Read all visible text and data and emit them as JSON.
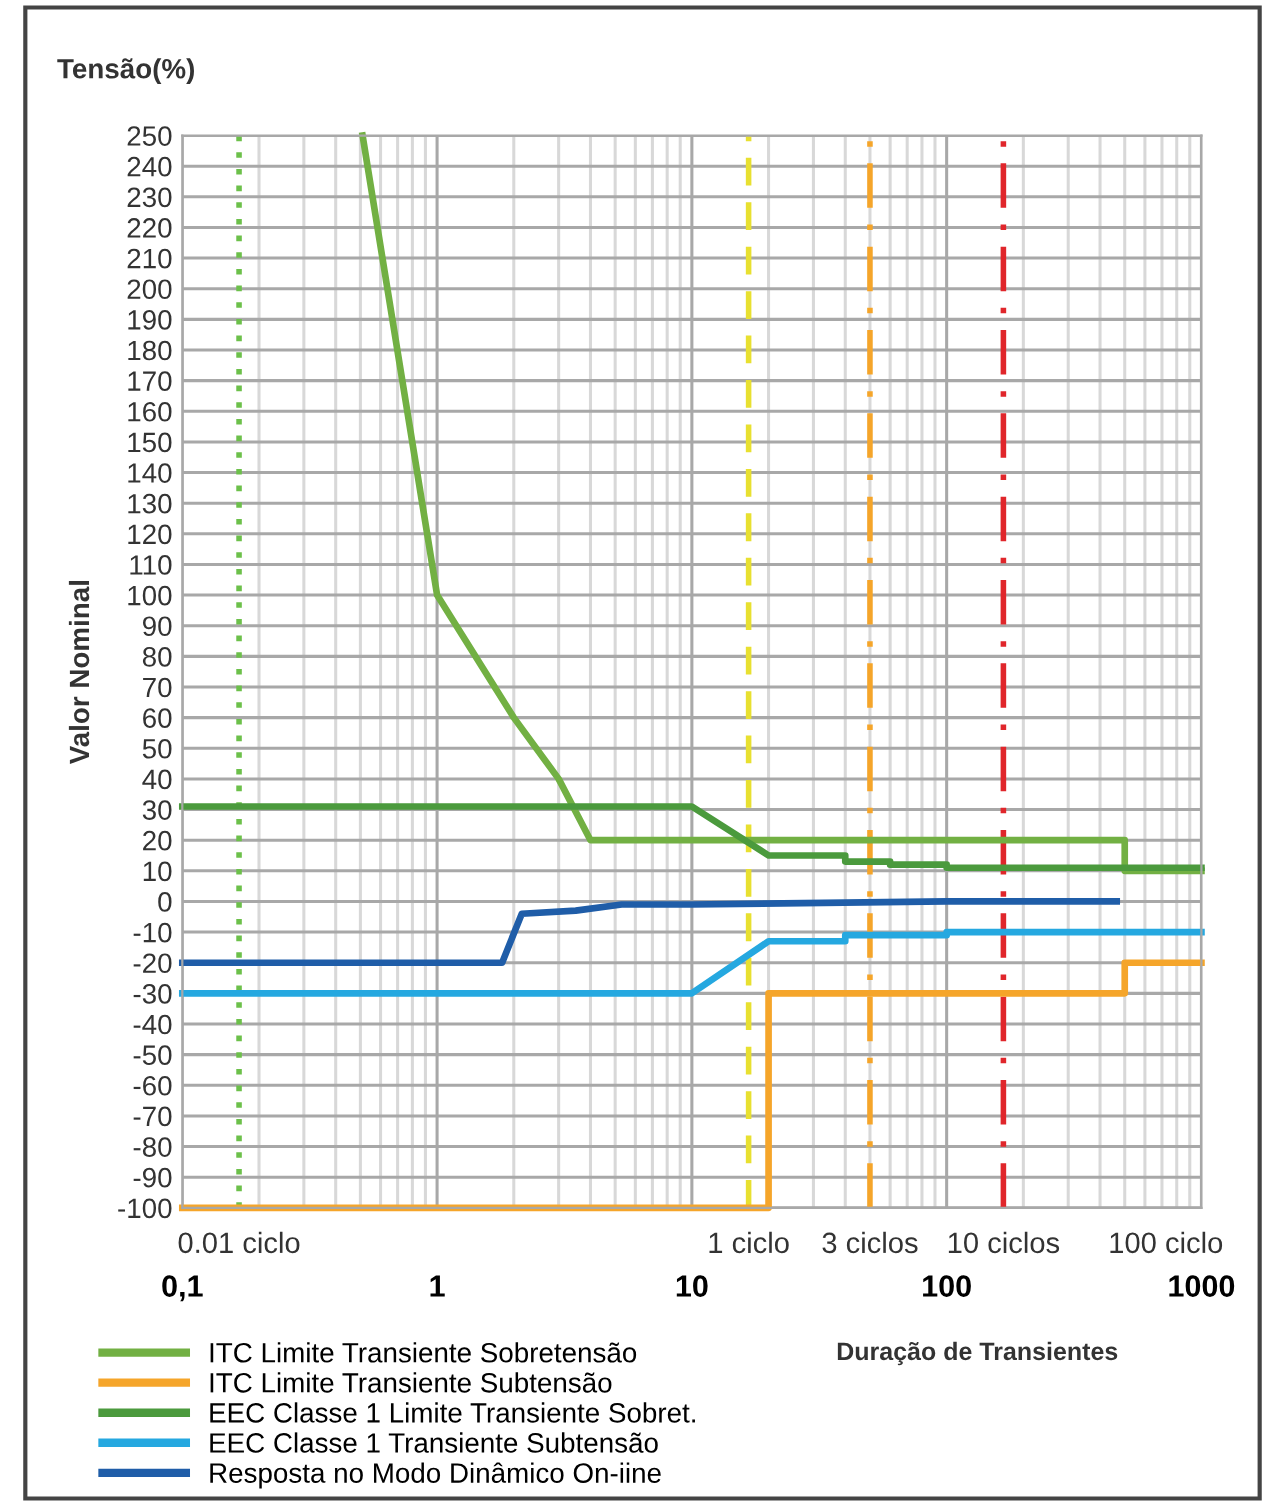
{
  "chart_data": {
    "type": "line",
    "title": "Tensão(%)",
    "ylabel": "Valor Nominal",
    "xlabel": "Duração de Transientes",
    "log": "x",
    "xlim": [
      0.1,
      1000
    ],
    "xticks": [
      {
        "value": 0.1,
        "label": "0,1"
      },
      1,
      10,
      100,
      1000
    ],
    "ylim": [
      -100,
      250
    ],
    "yticks": [
      -100,
      -90,
      -80,
      -70,
      -60,
      -50,
      -40,
      -30,
      -20,
      -10,
      0,
      10,
      20,
      30,
      40,
      50,
      60,
      70,
      80,
      90,
      100,
      110,
      120,
      130,
      140,
      150,
      160,
      170,
      180,
      190,
      200,
      210,
      220,
      230,
      240,
      250
    ],
    "grid": true,
    "legend": "bottom",
    "line_style": "solid",
    "marker": "none",
    "series": [
      {
        "name": "ITC Limite Transiente Sobretensão",
        "color": "#72b043",
        "x": [
          0.51,
          1,
          2,
          3,
          4,
          500,
          500,
          1000
        ],
        "values": [
          250,
          100,
          60,
          40,
          20,
          20,
          10,
          10
        ]
      },
      {
        "name": "ITC Limite Transiente Subtensão",
        "color": "#f5a52a",
        "x": [
          0.1,
          20,
          20,
          500,
          500,
          1000
        ],
        "values": [
          -100,
          -100,
          -30,
          -30,
          -20,
          -20
        ]
      },
      {
        "name": "EEC Classe 1 Limite Transiente Sobret.",
        "color": "#4b9a3d",
        "x": [
          0.1,
          10,
          20,
          40,
          40,
          60,
          60,
          100,
          100,
          1000
        ],
        "values": [
          31,
          31,
          15,
          15,
          13,
          13,
          12,
          12,
          11,
          11
        ]
      },
      {
        "name": "EEC Classe 1 Transiente Subtensão",
        "color": "#25a8e0",
        "x": [
          0.1,
          10,
          20,
          40,
          40,
          100,
          100,
          1000
        ],
        "values": [
          -30,
          -30,
          -13,
          -13,
          -11,
          -11,
          -10,
          -10
        ]
      },
      {
        "name": "Resposta no Modo Dinâmico On-iine",
        "color": "#1f5da8",
        "x": [
          0.1,
          1.8,
          2.15,
          3.5,
          5.3,
          10,
          100,
          465
        ],
        "values": [
          -20,
          -20,
          -4,
          -3,
          -1,
          -1,
          0,
          0
        ]
      }
    ],
    "ref_lines": [
      {
        "axis": "x",
        "value": 0.167,
        "label": "0.01 ciclo",
        "color": "#6cc04a",
        "line_style": "dotted"
      },
      {
        "axis": "x",
        "value": 16.7,
        "label": "1 ciclo",
        "color": "#e8e030",
        "line_style": "dashed"
      },
      {
        "axis": "x",
        "value": 50,
        "label": "3 ciclos",
        "color": "#f5a52a",
        "line_style": "dashdot"
      },
      {
        "axis": "x",
        "value": 167,
        "label": "10 ciclos",
        "color": "#e0262b",
        "line_style": "dashdot"
      }
    ],
    "annotations": [
      "100 ciclo"
    ]
  }
}
